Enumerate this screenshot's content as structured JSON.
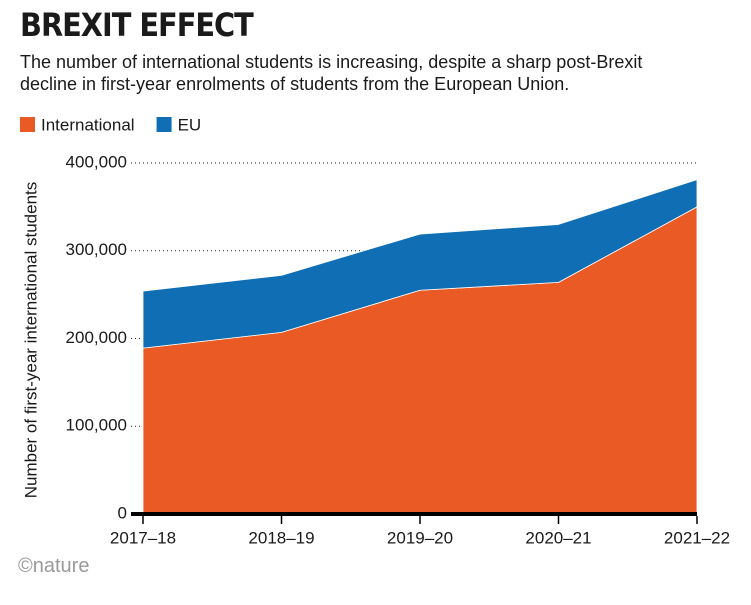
{
  "chart_data": {
    "type": "stacked-area",
    "title": "BREXIT EFFECT",
    "subtitle": "The number of international students is increasing, despite a sharp post-Brexit decline in first-year enrolments of students from the European Union.",
    "y_label": "Number of first-year international students",
    "source": "©nature",
    "categories": [
      "2017–18",
      "2018–19",
      "2019–20",
      "2020–21",
      "2021–22"
    ],
    "series": [
      {
        "name": "International",
        "color": "#e95a24",
        "values": [
          189000,
          207000,
          255000,
          264000,
          350000
        ]
      },
      {
        "name": "EU",
        "color": "#0f6eb4",
        "values": [
          65000,
          65000,
          64000,
          66000,
          31000
        ]
      }
    ],
    "ylim": [
      0,
      400000
    ],
    "yticks": [
      0,
      {
        "value": 100000,
        "label": "100,000"
      },
      {
        "value": 200000,
        "label": "200,000"
      },
      {
        "value": 300000,
        "label": "300,000"
      },
      {
        "value": 400000,
        "label": "400,000"
      }
    ],
    "grid": true
  }
}
